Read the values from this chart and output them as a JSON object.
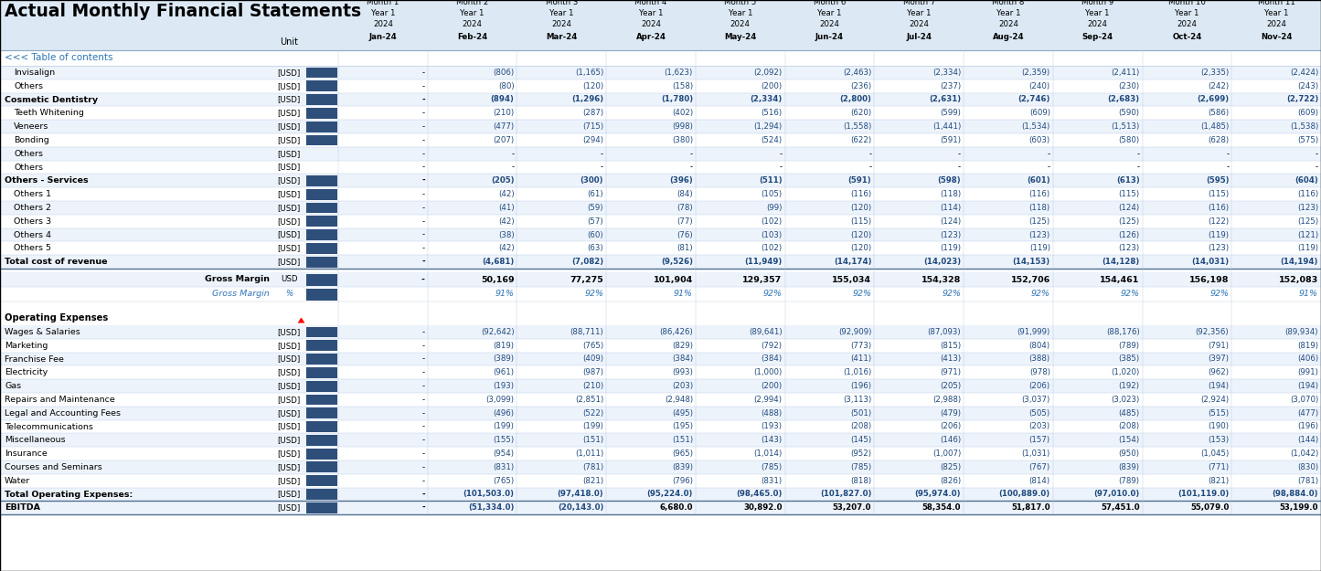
{
  "title": "Actual Monthly Financial Statements",
  "title_bg": "#dce9f5",
  "toc_text": "<<< Table of contents",
  "toc_color": "#2e75b6",
  "col_headers": [
    [
      "Month 1",
      "Month 2",
      "Month 3",
      "Month 4",
      "Month 5",
      "Month 6",
      "Month 7",
      "Month 8",
      "Month 9",
      "Month 10",
      "Month 11"
    ],
    [
      "Year 1",
      "Year 1",
      "Year 1",
      "Year 1",
      "Year 1",
      "Year 1",
      "Year 1",
      "Year 1",
      "Year 1",
      "Year 1",
      "Year 1"
    ],
    [
      "2024",
      "2024",
      "2024",
      "2024",
      "2024",
      "2024",
      "2024",
      "2024",
      "2024",
      "2024",
      "2024"
    ],
    [
      "Jan-24",
      "Feb-24",
      "Mar-24",
      "Apr-24",
      "May-24",
      "Jun-24",
      "Jul-24",
      "Aug-24",
      "Sep-24",
      "Oct-24",
      "Nov-24"
    ]
  ],
  "rows": [
    {
      "label": "Invisalign",
      "unit": "[USD]",
      "bold": false,
      "indent": 1,
      "has_bar": true,
      "vals": [
        "-",
        "(806)",
        "(1,165)",
        "(1,623)",
        "(2,092)",
        "(2,463)",
        "(2,334)",
        "(2,359)",
        "(2,411)",
        "(2,335)",
        "(2,424)"
      ]
    },
    {
      "label": "Others",
      "unit": "[USD]",
      "bold": false,
      "indent": 1,
      "has_bar": true,
      "vals": [
        "-",
        "(80)",
        "(120)",
        "(158)",
        "(200)",
        "(236)",
        "(237)",
        "(240)",
        "(230)",
        "(242)",
        "(243)"
      ]
    },
    {
      "label": "Cosmetic Dentistry",
      "unit": "[USD]",
      "bold": true,
      "indent": 0,
      "has_bar": true,
      "vals": [
        "-",
        "(894)",
        "(1,296)",
        "(1,780)",
        "(2,334)",
        "(2,800)",
        "(2,631)",
        "(2,746)",
        "(2,683)",
        "(2,699)",
        "(2,722)"
      ]
    },
    {
      "label": "Teeth Whitening",
      "unit": "[USD]",
      "bold": false,
      "indent": 1,
      "has_bar": true,
      "vals": [
        "-",
        "(210)",
        "(287)",
        "(402)",
        "(516)",
        "(620)",
        "(599)",
        "(609)",
        "(590)",
        "(586)",
        "(609)"
      ]
    },
    {
      "label": "Veneers",
      "unit": "[USD]",
      "bold": false,
      "indent": 1,
      "has_bar": true,
      "vals": [
        "-",
        "(477)",
        "(715)",
        "(998)",
        "(1,294)",
        "(1,558)",
        "(1,441)",
        "(1,534)",
        "(1,513)",
        "(1,485)",
        "(1,538)"
      ]
    },
    {
      "label": "Bonding",
      "unit": "[USD]",
      "bold": false,
      "indent": 1,
      "has_bar": true,
      "vals": [
        "-",
        "(207)",
        "(294)",
        "(380)",
        "(524)",
        "(622)",
        "(591)",
        "(603)",
        "(580)",
        "(628)",
        "(575)"
      ]
    },
    {
      "label": "Others",
      "unit": "[USD]",
      "bold": false,
      "indent": 1,
      "has_bar": false,
      "vals": [
        "-",
        "-",
        "-",
        "-",
        "-",
        "-",
        "-",
        "-",
        "-",
        "-",
        "-"
      ]
    },
    {
      "label": "Others",
      "unit": "[USD]",
      "bold": false,
      "indent": 1,
      "has_bar": false,
      "vals": [
        "-",
        "-",
        "-",
        "-",
        "-",
        "-",
        "-",
        "-",
        "-",
        "-",
        "-"
      ]
    },
    {
      "label": "Others - Services",
      "unit": "[USD]",
      "bold": true,
      "indent": 0,
      "has_bar": true,
      "vals": [
        "-",
        "(205)",
        "(300)",
        "(396)",
        "(511)",
        "(591)",
        "(598)",
        "(601)",
        "(613)",
        "(595)",
        "(604)"
      ]
    },
    {
      "label": "Others 1",
      "unit": "[USD]",
      "bold": false,
      "indent": 1,
      "has_bar": true,
      "vals": [
        "-",
        "(42)",
        "(61)",
        "(84)",
        "(105)",
        "(116)",
        "(118)",
        "(116)",
        "(115)",
        "(115)",
        "(116)"
      ]
    },
    {
      "label": "Others 2",
      "unit": "[USD]",
      "bold": false,
      "indent": 1,
      "has_bar": true,
      "vals": [
        "-",
        "(41)",
        "(59)",
        "(78)",
        "(99)",
        "(120)",
        "(114)",
        "(118)",
        "(124)",
        "(116)",
        "(123)"
      ]
    },
    {
      "label": "Others 3",
      "unit": "[USD]",
      "bold": false,
      "indent": 1,
      "has_bar": true,
      "vals": [
        "-",
        "(42)",
        "(57)",
        "(77)",
        "(102)",
        "(115)",
        "(124)",
        "(125)",
        "(125)",
        "(122)",
        "(125)"
      ]
    },
    {
      "label": "Others 4",
      "unit": "[USD]",
      "bold": false,
      "indent": 1,
      "has_bar": true,
      "vals": [
        "-",
        "(38)",
        "(60)",
        "(76)",
        "(103)",
        "(120)",
        "(123)",
        "(123)",
        "(126)",
        "(119)",
        "(121)"
      ]
    },
    {
      "label": "Others 5",
      "unit": "[USD]",
      "bold": false,
      "indent": 1,
      "has_bar": true,
      "vals": [
        "-",
        "(42)",
        "(63)",
        "(81)",
        "(102)",
        "(120)",
        "(119)",
        "(119)",
        "(123)",
        "(123)",
        "(119)"
      ]
    },
    {
      "label": "Total cost of revenue",
      "unit": "[USD]",
      "bold": true,
      "indent": 0,
      "has_bar": true,
      "vals": [
        "-",
        "(4,681)",
        "(7,082)",
        "(9,526)",
        "(11,949)",
        "(14,174)",
        "(14,023)",
        "(14,153)",
        "(14,128)",
        "(14,031)",
        "(14,194)"
      ],
      "bottom_border": true
    }
  ],
  "gm_rows": [
    {
      "label": "Gross Margin",
      "unit": "USD",
      "bold": true,
      "italic": false,
      "color": "#000000",
      "vals": [
        "-",
        "50,169",
        "77,275",
        "101,904",
        "129,357",
        "155,034",
        "154,328",
        "152,706",
        "154,461",
        "156,198",
        "152,083"
      ]
    },
    {
      "label": "Gross Margin",
      "unit": "%",
      "bold": false,
      "italic": true,
      "color": "#2e75b6",
      "vals": [
        "",
        "91%",
        "92%",
        "91%",
        "92%",
        "92%",
        "92%",
        "92%",
        "92%",
        "92%",
        "91%"
      ]
    }
  ],
  "opex_header": "Operating Expenses",
  "opex_rows": [
    {
      "label": "Wages & Salaries",
      "unit": "[USD]",
      "bold": false,
      "has_bar": true,
      "vals": [
        "-",
        "(92,642)",
        "(88,711)",
        "(86,426)",
        "(89,641)",
        "(92,909)",
        "(87,093)",
        "(91,999)",
        "(88,176)",
        "(92,356)",
        "(89,934)"
      ]
    },
    {
      "label": "Marketing",
      "unit": "[USD]",
      "bold": false,
      "has_bar": true,
      "vals": [
        "-",
        "(819)",
        "(765)",
        "(829)",
        "(792)",
        "(773)",
        "(815)",
        "(804)",
        "(789)",
        "(791)",
        "(819)"
      ]
    },
    {
      "label": "Franchise Fee",
      "unit": "[USD]",
      "bold": false,
      "has_bar": true,
      "vals": [
        "-",
        "(389)",
        "(409)",
        "(384)",
        "(384)",
        "(411)",
        "(413)",
        "(388)",
        "(385)",
        "(397)",
        "(406)"
      ]
    },
    {
      "label": "Electricity",
      "unit": "[USD]",
      "bold": false,
      "has_bar": true,
      "vals": [
        "-",
        "(961)",
        "(987)",
        "(993)",
        "(1,000)",
        "(1,016)",
        "(971)",
        "(978)",
        "(1,020)",
        "(962)",
        "(991)"
      ]
    },
    {
      "label": "Gas",
      "unit": "[USD]",
      "bold": false,
      "has_bar": true,
      "vals": [
        "-",
        "(193)",
        "(210)",
        "(203)",
        "(200)",
        "(196)",
        "(205)",
        "(206)",
        "(192)",
        "(194)",
        "(194)"
      ]
    },
    {
      "label": "Repairs and Maintenance",
      "unit": "[USD]",
      "bold": false,
      "has_bar": true,
      "vals": [
        "-",
        "(3,099)",
        "(2,851)",
        "(2,948)",
        "(2,994)",
        "(3,113)",
        "(2,988)",
        "(3,037)",
        "(3,023)",
        "(2,924)",
        "(3,070)"
      ]
    },
    {
      "label": "Legal and Accounting Fees",
      "unit": "[USD]",
      "bold": false,
      "has_bar": true,
      "vals": [
        "-",
        "(496)",
        "(522)",
        "(495)",
        "(488)",
        "(501)",
        "(479)",
        "(505)",
        "(485)",
        "(515)",
        "(477)"
      ]
    },
    {
      "label": "Telecommunications",
      "unit": "[USD]",
      "bold": false,
      "has_bar": true,
      "vals": [
        "-",
        "(199)",
        "(199)",
        "(195)",
        "(193)",
        "(208)",
        "(206)",
        "(203)",
        "(208)",
        "(190)",
        "(196)"
      ]
    },
    {
      "label": "Miscellaneous",
      "unit": "[USD]",
      "bold": false,
      "has_bar": true,
      "vals": [
        "-",
        "(155)",
        "(151)",
        "(151)",
        "(143)",
        "(145)",
        "(146)",
        "(157)",
        "(154)",
        "(153)",
        "(144)"
      ]
    },
    {
      "label": "Insurance",
      "unit": "[USD]",
      "bold": false,
      "has_bar": true,
      "vals": [
        "-",
        "(954)",
        "(1,011)",
        "(965)",
        "(1,014)",
        "(952)",
        "(1,007)",
        "(1,031)",
        "(950)",
        "(1,045)",
        "(1,042)"
      ]
    },
    {
      "label": "Courses and Seminars",
      "unit": "[USD]",
      "bold": false,
      "has_bar": true,
      "vals": [
        "-",
        "(831)",
        "(781)",
        "(839)",
        "(785)",
        "(785)",
        "(825)",
        "(767)",
        "(839)",
        "(771)",
        "(830)"
      ]
    },
    {
      "label": "Water",
      "unit": "[USD]",
      "bold": false,
      "has_bar": true,
      "vals": [
        "-",
        "(765)",
        "(821)",
        "(796)",
        "(831)",
        "(818)",
        "(826)",
        "(814)",
        "(789)",
        "(821)",
        "(781)"
      ]
    },
    {
      "label": "Total Operating Expenses:",
      "unit": "[USD]",
      "bold": true,
      "has_bar": true,
      "vals": [
        "-",
        "(101,503.0)",
        "(97,418.0)",
        "(95,224.0)",
        "(98,465.0)",
        "(101,827.0)",
        "(95,974.0)",
        "(100,889.0)",
        "(97,010.0)",
        "(101,119.0)",
        "(98,884.0)"
      ],
      "bottom_border": true
    }
  ],
  "ebitda_row": {
    "label": "EBITDA",
    "unit": "[USD]",
    "bold": true,
    "vals": [
      "-",
      "(51,334.0)",
      "(20,143.0)",
      "6,680.0",
      "30,892.0",
      "53,207.0",
      "58,354.0",
      "51,817.0",
      "57,451.0",
      "55,079.0",
      "53,199.0"
    ]
  },
  "bar_color": "#2e4f7a",
  "neg_text_color": "#1f497d",
  "separator_color": "#b8cce4",
  "dark_separator": "#5f7f9f"
}
